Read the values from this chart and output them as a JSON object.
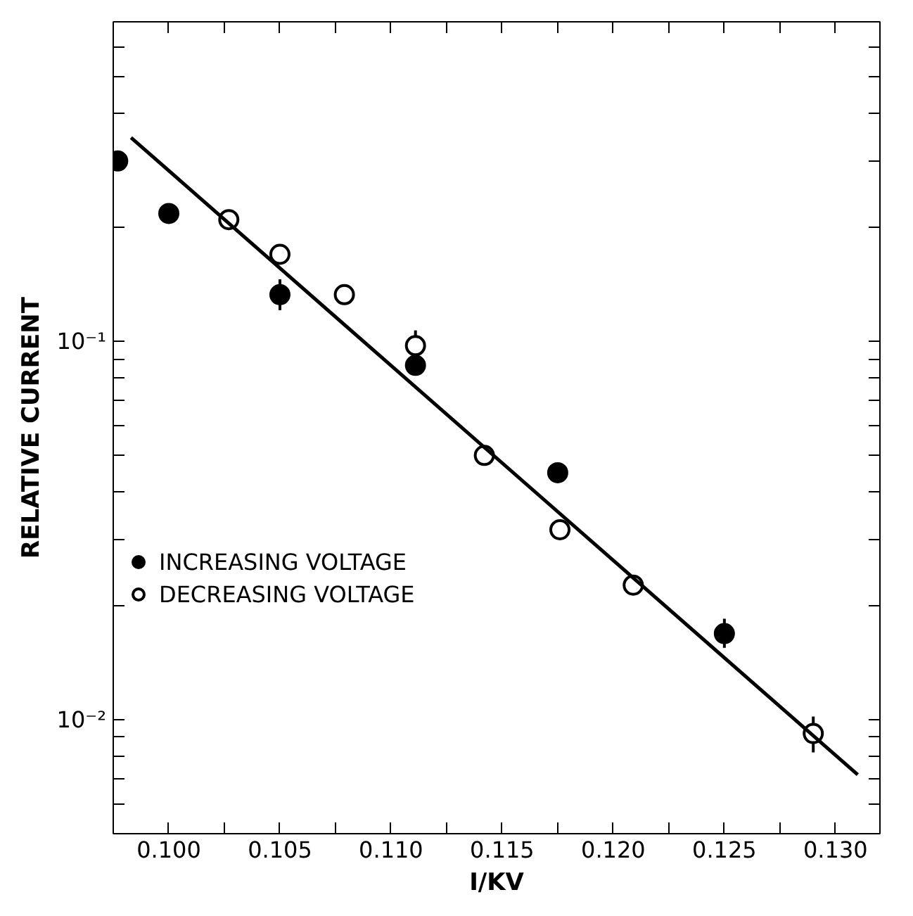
{
  "chart_data": {
    "type": "scatter",
    "xlabel": "I/KV",
    "ylabel": "RELATIVE CURRENT",
    "log": "y",
    "grid": false,
    "legend": "left",
    "marker": "circle",
    "xlim": [
      0.0975,
      0.132
    ],
    "ylim": [
      0.005,
      0.7
    ],
    "xticks": [
      {
        "value": 0.1,
        "label": "0.100"
      },
      {
        "value": 0.1025,
        "label": null
      },
      {
        "value": 0.105,
        "label": "0.105"
      },
      {
        "value": 0.1075,
        "label": null
      },
      {
        "value": 0.11,
        "label": "0.110"
      },
      {
        "value": 0.1125,
        "label": null
      },
      {
        "value": 0.115,
        "label": "0.115"
      },
      {
        "value": 0.1175,
        "label": null
      },
      {
        "value": 0.12,
        "label": "0.120"
      },
      {
        "value": 0.1225,
        "label": null
      },
      {
        "value": 0.125,
        "label": "0.125"
      },
      {
        "value": 0.1275,
        "label": null
      },
      {
        "value": 0.13,
        "label": "0.130"
      }
    ],
    "yticks": [
      {
        "value": 0.006,
        "label": null
      },
      {
        "value": 0.007,
        "label": null
      },
      {
        "value": 0.008,
        "label": null
      },
      {
        "value": 0.009,
        "label": null
      },
      {
        "value": 0.01,
        "label": "10⁻²"
      },
      {
        "value": 0.02,
        "label": null
      },
      {
        "value": 0.03,
        "label": null
      },
      {
        "value": 0.04,
        "label": null
      },
      {
        "value": 0.05,
        "label": null
      },
      {
        "value": 0.06,
        "label": null
      },
      {
        "value": 0.07,
        "label": null
      },
      {
        "value": 0.08,
        "label": null
      },
      {
        "value": 0.09,
        "label": null
      },
      {
        "value": 0.1,
        "label": "10⁻¹"
      },
      {
        "value": 0.2,
        "label": null
      },
      {
        "value": 0.3,
        "label": null
      },
      {
        "value": 0.4,
        "label": null
      },
      {
        "value": 0.5,
        "label": null
      },
      {
        "value": 0.6,
        "label": null
      }
    ],
    "series": [
      {
        "name": "INCREASING VOLTAGE",
        "color": "#000000",
        "x": [
          0.0977,
          0.1,
          0.105,
          0.1111,
          0.1175,
          0.125
        ],
        "values": [
          0.3,
          0.218,
          0.133,
          0.0865,
          0.045,
          0.0169
        ],
        "errors": [
          null,
          null,
          [
            0.121,
            0.146
          ],
          null,
          null,
          [
            0.0155,
            0.0185
          ]
        ]
      },
      {
        "name": "DECREASING VOLTAGE",
        "color": "#ffffff",
        "x": [
          0.1027,
          0.105,
          0.1079,
          0.1111,
          0.1142,
          0.1176,
          0.1209,
          0.129
        ],
        "values": [
          0.21,
          0.17,
          0.133,
          0.0975,
          0.05,
          0.0318,
          0.0227,
          0.0092
        ],
        "errors": [
          null,
          null,
          null,
          [
            0.091,
            0.107
          ],
          null,
          null,
          null,
          [
            0.0082,
            0.0102
          ]
        ]
      },
      {
        "type": "line",
        "marker": "none",
        "color": "#000000",
        "x": [
          0.0983,
          0.131
        ],
        "values": [
          0.346,
          0.00716
        ]
      }
    ]
  }
}
